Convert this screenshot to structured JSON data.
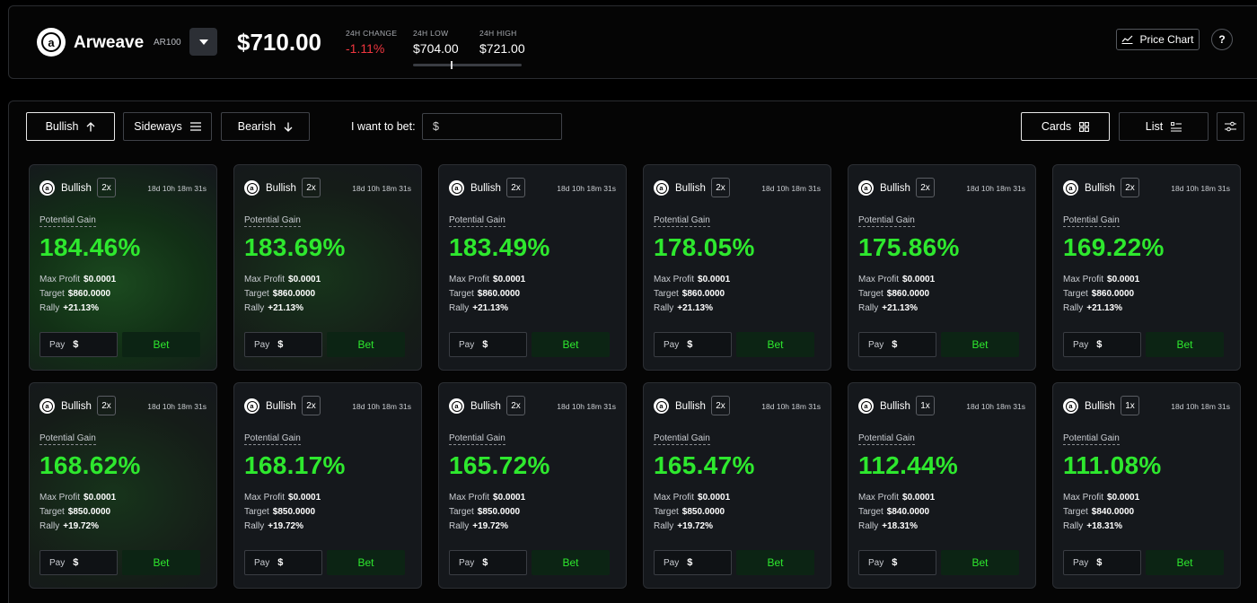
{
  "header": {
    "token_name": "Arweave",
    "token_ticker": "AR100",
    "price": "$710.00",
    "change_label": "24H CHANGE",
    "change_value": "-1.11%",
    "low_label": "24H LOW",
    "low_value": "$704.00",
    "high_label": "24H HIGH",
    "high_value": "$721.00",
    "price_chart_label": "Price Chart",
    "help_label": "?"
  },
  "toolbar": {
    "bullish_label": "Bullish",
    "sideways_label": "Sideways",
    "bearish_label": "Bearish",
    "bet_label": "I want to bet:",
    "bet_placeholder": "$",
    "cards_label": "Cards",
    "list_label": "List"
  },
  "card_labels": {
    "potential_gain": "Potential Gain",
    "max_profit": "Max Profit",
    "target": "Target",
    "rally": "Rally",
    "pay": "Pay",
    "pay_currency": "$",
    "bet": "Bet"
  },
  "cards": [
    {
      "direction": "Bullish",
      "leverage": "2x",
      "time": "18d 10h 18m 31s",
      "gain": "184.46%",
      "max_profit": "$0.0001",
      "target": "$860.0000",
      "rally": "+21.13%"
    },
    {
      "direction": "Bullish",
      "leverage": "2x",
      "time": "18d 10h 18m 31s",
      "gain": "183.69%",
      "max_profit": "$0.0001",
      "target": "$860.0000",
      "rally": "+21.13%"
    },
    {
      "direction": "Bullish",
      "leverage": "2x",
      "time": "18d 10h 18m 31s",
      "gain": "183.49%",
      "max_profit": "$0.0001",
      "target": "$860.0000",
      "rally": "+21.13%"
    },
    {
      "direction": "Bullish",
      "leverage": "2x",
      "time": "18d 10h 18m 31s",
      "gain": "178.05%",
      "max_profit": "$0.0001",
      "target": "$860.0000",
      "rally": "+21.13%"
    },
    {
      "direction": "Bullish",
      "leverage": "2x",
      "time": "18d 10h 18m 31s",
      "gain": "175.86%",
      "max_profit": "$0.0001",
      "target": "$860.0000",
      "rally": "+21.13%"
    },
    {
      "direction": "Bullish",
      "leverage": "2x",
      "time": "18d 10h 18m 31s",
      "gain": "169.22%",
      "max_profit": "$0.0001",
      "target": "$860.0000",
      "rally": "+21.13%"
    },
    {
      "direction": "Bullish",
      "leverage": "2x",
      "time": "18d 10h 18m 31s",
      "gain": "168.62%",
      "max_profit": "$0.0001",
      "target": "$850.0000",
      "rally": "+19.72%"
    },
    {
      "direction": "Bullish",
      "leverage": "2x",
      "time": "18d 10h 18m 31s",
      "gain": "168.17%",
      "max_profit": "$0.0001",
      "target": "$850.0000",
      "rally": "+19.72%"
    },
    {
      "direction": "Bullish",
      "leverage": "2x",
      "time": "18d 10h 18m 31s",
      "gain": "165.72%",
      "max_profit": "$0.0001",
      "target": "$850.0000",
      "rally": "+19.72%"
    },
    {
      "direction": "Bullish",
      "leverage": "2x",
      "time": "18d 10h 18m 31s",
      "gain": "165.47%",
      "max_profit": "$0.0001",
      "target": "$850.0000",
      "rally": "+19.72%"
    },
    {
      "direction": "Bullish",
      "leverage": "1x",
      "time": "18d 10h 18m 31s",
      "gain": "112.44%",
      "max_profit": "$0.0001",
      "target": "$840.0000",
      "rally": "+18.31%"
    },
    {
      "direction": "Bullish",
      "leverage": "1x",
      "time": "18d 10h 18m 31s",
      "gain": "111.08%",
      "max_profit": "$0.0001",
      "target": "$840.0000",
      "rally": "+18.31%"
    }
  ]
}
